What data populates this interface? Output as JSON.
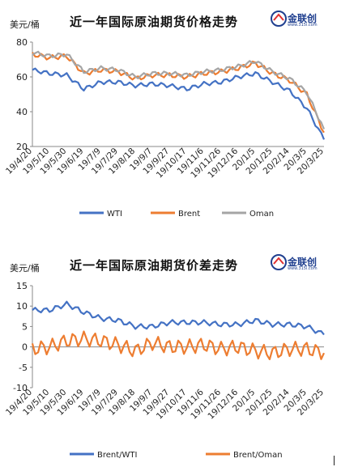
{
  "charts": [
    {
      "unit_label": "美元/桶",
      "title": "近一年国际原油期货价格走势",
      "logo": {
        "name": "金联创",
        "url": "www.315i.com"
      },
      "yticks": [
        20,
        40,
        60,
        80
      ],
      "xticks": [
        "19/4/20",
        "19/5/10",
        "19/5/30",
        "19/6/19",
        "19/7/9",
        "19/7/29",
        "19/8/18",
        "19/9/7",
        "19/9/27",
        "19/10/17",
        "19/11/6",
        "19/11/26",
        "19/12/16",
        "20/1/5",
        "20/1/25",
        "20/2/14",
        "20/3/5",
        "20/3/25"
      ]
    },
    {
      "unit_label": "美元/桶",
      "title": "近一年国际原油期货价差走势",
      "logo": {
        "name": "金联创",
        "url": "www.315i.com"
      },
      "yticks": [
        -10,
        -5,
        0,
        5,
        10,
        15
      ],
      "xticks": [
        "19/4/20",
        "19/5/10",
        "19/5/30",
        "19/6/19",
        "19/7/9",
        "19/7/29",
        "19/8/18",
        "19/9/7",
        "19/9/27",
        "19/10/17",
        "19/11/6",
        "19/11/26",
        "19/12/16",
        "20/1/5",
        "20/1/25",
        "20/2/14",
        "20/3/5",
        "20/3/25"
      ]
    }
  ],
  "chart_data": [
    {
      "type": "line",
      "title": "近一年国际原油期货价格走势",
      "ylabel": "美元/桶",
      "ylim": [
        20,
        80
      ],
      "grid": false,
      "legend": "bottom",
      "x": [
        "19/4/20",
        "19/5/10",
        "19/5/30",
        "19/6/19",
        "19/7/9",
        "19/7/29",
        "19/8/18",
        "19/9/7",
        "19/9/27",
        "19/10/17",
        "19/11/6",
        "19/11/26",
        "19/12/16",
        "20/1/5",
        "20/1/25",
        "20/2/14",
        "20/3/5",
        "20/3/25"
      ],
      "series": [
        {
          "name": "WTI",
          "color": "#4472c4",
          "values": [
            64,
            62,
            61,
            53,
            57,
            57,
            55,
            56,
            55,
            53,
            56,
            57,
            60,
            62,
            57,
            52,
            42,
            24
          ]
        },
        {
          "name": "Brent",
          "color": "#ed7d31",
          "values": [
            73,
            71,
            72,
            62,
            64,
            63,
            59,
            61,
            61,
            60,
            62,
            63,
            65,
            68,
            62,
            58,
            50,
            28
          ]
        },
        {
          "name": "Oman",
          "color": "#a5a5a5",
          "values": [
            74,
            72,
            73,
            63,
            65,
            64,
            60,
            62,
            62,
            61,
            63,
            64,
            66,
            69,
            63,
            59,
            51,
            30
          ]
        }
      ]
    },
    {
      "type": "line",
      "title": "近一年国际原油期货价差走势",
      "ylabel": "美元/桶",
      "ylim": [
        -10,
        15
      ],
      "grid": false,
      "legend": "bottom",
      "x": [
        "19/4/20",
        "19/5/10",
        "19/5/30",
        "19/6/19",
        "19/7/9",
        "19/7/29",
        "19/8/18",
        "19/9/7",
        "19/9/27",
        "19/10/17",
        "19/11/6",
        "19/11/26",
        "19/12/16",
        "20/1/5",
        "20/1/25",
        "20/2/14",
        "20/3/5",
        "20/3/25"
      ],
      "series": [
        {
          "name": "Brent/WTI",
          "color": "#4472c4",
          "values": [
            9,
            9,
            10.5,
            8.5,
            7,
            6.5,
            5,
            5,
            6,
            6,
            6,
            5.5,
            5.5,
            6.5,
            5.5,
            5.5,
            5,
            3
          ]
        },
        {
          "name": "Brent/Oman",
          "color": "#ed7d31",
          "values": [
            -0.5,
            0,
            1.5,
            2,
            1.5,
            0.5,
            -1,
            1,
            0,
            0,
            0.5,
            -0.5,
            0,
            -1,
            -1.5,
            -0.5,
            -0.5,
            -1.5
          ]
        }
      ]
    }
  ]
}
